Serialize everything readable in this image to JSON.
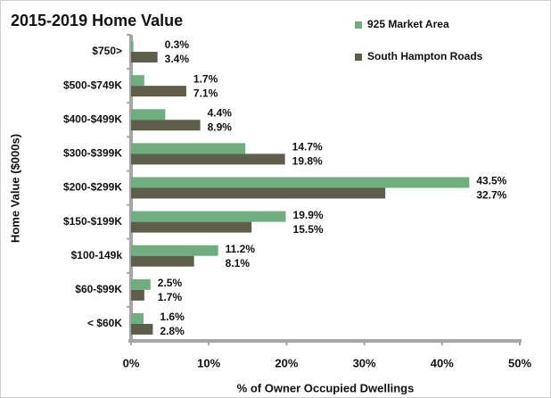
{
  "chart_data": {
    "type": "hbar",
    "title": "2015-2019 Home Value",
    "xlabel": "% of Owner Occupied Dwellings",
    "ylabel": "Home Value ($000s)",
    "categories": [
      "$750>",
      "$500-$749K",
      "$400-$499K",
      "$300-$399K",
      "$200-$299K",
      "$150-$199K",
      "$100-149k",
      "$60-$99K",
      "< $60K"
    ],
    "series": [
      {
        "name": "925 Market Area",
        "color": "#70ad7f",
        "values": [
          0.3,
          1.7,
          4.4,
          14.7,
          43.5,
          19.9,
          11.2,
          2.5,
          1.6
        ],
        "value_labels": [
          "0.3%",
          "1.7%",
          "4.4%",
          "14.7%",
          "43.5%",
          "19.9%",
          "11.2%",
          "2.5%",
          "1.6%"
        ]
      },
      {
        "name": "South Hampton Roads",
        "color": "#5f5e4b",
        "values": [
          3.4,
          7.1,
          8.9,
          19.8,
          32.7,
          15.5,
          8.1,
          1.7,
          2.8
        ],
        "value_labels": [
          "3.4%",
          "7.1%",
          "8.9%",
          "19.8%",
          "32.7%",
          "15.5%",
          "8.1%",
          "1.7%",
          "2.8%"
        ]
      }
    ],
    "xlim": [
      0,
      50
    ],
    "xticks": [
      {
        "value": 0,
        "label": "0%"
      },
      {
        "value": 10,
        "label": "10%"
      },
      {
        "value": 20,
        "label": "20%"
      },
      {
        "value": 30,
        "label": "30%"
      },
      {
        "value": 40,
        "label": "40%"
      },
      {
        "value": 50,
        "label": "50%"
      }
    ],
    "grid": false,
    "legend": "top-right"
  }
}
